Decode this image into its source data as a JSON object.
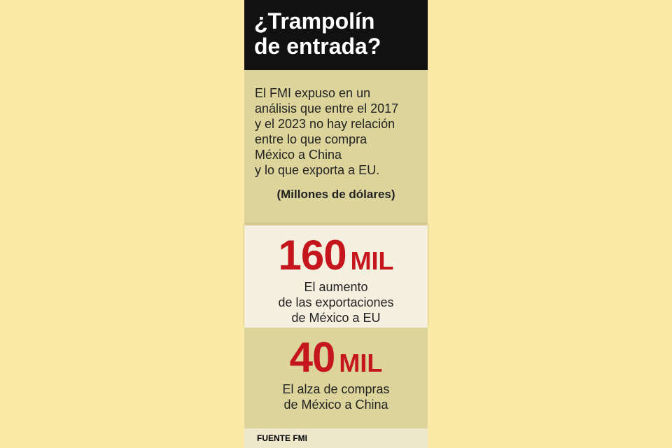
{
  "header": {
    "title": [
      "¿Trampolín",
      "de entrada?"
    ]
  },
  "intro": {
    "lines": [
      "El FMI expuso en un",
      "análisis que entre el 2017",
      "y el 2023 no hay relación",
      "entre lo que compra",
      "México a China",
      "y lo que exporta a EU."
    ],
    "units": "(Millones de dólares)"
  },
  "stats": [
    {
      "number": "160",
      "unit": "MIL",
      "lines": [
        "El aumento",
        "de las exportaciones",
        "de México a EU"
      ]
    },
    {
      "number": "40",
      "unit": "MIL",
      "lines": [
        "El alza de compras",
        "de México a China"
      ]
    }
  ],
  "source": "FUENTE FMI"
}
